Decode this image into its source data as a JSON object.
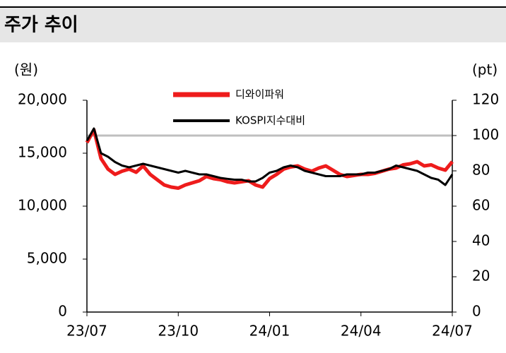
{
  "chart_data": {
    "type": "line",
    "title": "주가 추이",
    "y_label": "(원)",
    "y2_label": "(pt)",
    "categories": [
      "23/07",
      null,
      null,
      null,
      null,
      null,
      null,
      null,
      null,
      null,
      null,
      null,
      null,
      "23/10",
      null,
      null,
      null,
      null,
      null,
      null,
      null,
      null,
      null,
      null,
      null,
      null,
      "24/01",
      null,
      null,
      null,
      null,
      null,
      null,
      null,
      null,
      null,
      null,
      null,
      null,
      "24/04",
      null,
      null,
      null,
      null,
      null,
      null,
      null,
      null,
      null,
      null,
      null,
      null,
      "24/07"
    ],
    "series": [
      {
        "name": "디와이파워",
        "color": "#ee1c1c",
        "axis": "y",
        "values": [
          16000,
          17200,
          14500,
          13500,
          13000,
          13300,
          13500,
          13200,
          13800,
          13000,
          12500,
          12000,
          11800,
          11700,
          12000,
          12200,
          12400,
          12800,
          12600,
          12500,
          12300,
          12200,
          12300,
          12400,
          12000,
          11800,
          12600,
          13000,
          13500,
          13700,
          13800,
          13500,
          13300,
          13600,
          13800,
          13400,
          13000,
          12800,
          12900,
          13000,
          13000,
          13100,
          13300,
          13500,
          13600,
          13900,
          14000,
          14200,
          13800,
          13900,
          13600,
          13400,
          14200
        ]
      },
      {
        "name": "KOSPI지수대비",
        "color": "#000000",
        "axis": "y2",
        "values": [
          97,
          104,
          90,
          88,
          85,
          83,
          82,
          83,
          84,
          83,
          82,
          81,
          80,
          79,
          80,
          79,
          78,
          78,
          77,
          76,
          75.5,
          75,
          75,
          74,
          74,
          76,
          79,
          80,
          82,
          83,
          82,
          80,
          79,
          78,
          77,
          77,
          77,
          78,
          78,
          78,
          79,
          79,
          80,
          81,
          83,
          82,
          81,
          80,
          78,
          76,
          75,
          72,
          78
        ]
      }
    ],
    "reference_line": {
      "axis": "y2",
      "value": 100,
      "color": "#bfbfbf"
    },
    "ylim": [
      0,
      20000
    ],
    "yticks": [
      0,
      {
        "value": 5000,
        "label": "5,000"
      },
      {
        "value": 10000,
        "label": "10,000"
      },
      {
        "value": 15000,
        "label": "15,000"
      },
      {
        "value": 20000,
        "label": "20,000"
      }
    ],
    "y2lim": [
      0,
      120
    ],
    "y2ticks": [
      0,
      20,
      40,
      60,
      80,
      100,
      120
    ]
  }
}
